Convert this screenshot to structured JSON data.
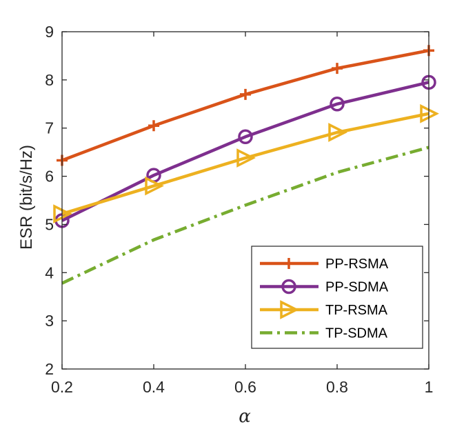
{
  "chart_data": {
    "type": "line",
    "title": "",
    "xlabel": "α",
    "ylabel": "ESR (bit/s/Hz)",
    "x": [
      0.2,
      0.4,
      0.6,
      0.8,
      1.0
    ],
    "xlim": [
      0.2,
      1.0
    ],
    "ylim": [
      2,
      9
    ],
    "xticks": [
      0.2,
      0.4,
      0.6,
      0.8,
      1.0
    ],
    "xtick_labels": [
      "0.2",
      "0.4",
      "0.6",
      "0.8",
      "1"
    ],
    "yticks": [
      2,
      3,
      4,
      5,
      6,
      7,
      8,
      9
    ],
    "ytick_labels": [
      "2",
      "3",
      "4",
      "5",
      "6",
      "7",
      "8",
      "9"
    ],
    "grid": false,
    "legend_position": "bottom-right",
    "series": [
      {
        "name": "PP-RSMA",
        "values": [
          6.33,
          7.05,
          7.7,
          8.24,
          8.61
        ],
        "color": "#D95319",
        "marker": "plus",
        "line": "solid"
      },
      {
        "name": "PP-SDMA",
        "values": [
          5.08,
          6.02,
          6.82,
          7.5,
          7.95
        ],
        "color": "#7E2F8E",
        "marker": "circle",
        "line": "solid"
      },
      {
        "name": "TP-RSMA",
        "values": [
          5.22,
          5.8,
          6.38,
          6.91,
          7.3
        ],
        "color": "#EDB120",
        "marker": "triangle-right",
        "line": "solid"
      },
      {
        "name": "TP-SDMA",
        "values": [
          3.78,
          4.68,
          5.4,
          6.08,
          6.6
        ],
        "color": "#77AC30",
        "marker": "none",
        "line": "dashdot"
      }
    ]
  }
}
